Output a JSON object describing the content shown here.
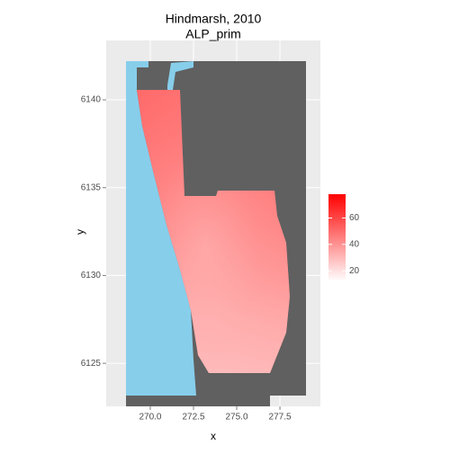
{
  "chart_data": {
    "type": "raster-map",
    "title": "Hindmarsh, 2010",
    "subtitle": "ALP_prim",
    "x_label": "x",
    "y_label": "y",
    "xlim": [
      267.45,
      279.84
    ],
    "xticks": [
      {
        "value": 270,
        "label": "270.0"
      },
      {
        "value": 272.5,
        "label": "272.5"
      },
      {
        "value": 275,
        "label": "275.0"
      },
      {
        "value": 277.5,
        "label": "277.5"
      }
    ],
    "ylim": [
      6122.55,
      6143.38
    ],
    "yticks": [
      6125,
      6130,
      6135,
      6140
    ],
    "grid": true,
    "colorbar": {
      "lim": [
        12,
        78
      ],
      "ticks": [
        20,
        40,
        60
      ],
      "low_color": "#ffffff",
      "high_color": "#ff0000"
    }
  }
}
